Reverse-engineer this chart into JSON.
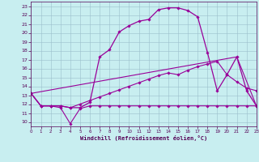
{
  "xlabel": "Windchill (Refroidissement éolien,°C)",
  "xlim": [
    0,
    23
  ],
  "ylim": [
    9.5,
    23.5
  ],
  "xticks": [
    0,
    1,
    2,
    3,
    4,
    5,
    6,
    7,
    8,
    9,
    10,
    11,
    12,
    13,
    14,
    15,
    16,
    17,
    18,
    19,
    20,
    21,
    22,
    23
  ],
  "yticks": [
    10,
    11,
    12,
    13,
    14,
    15,
    16,
    17,
    18,
    19,
    20,
    21,
    22,
    23
  ],
  "bg_color": "#c8eef0",
  "line_color": "#990099",
  "grid_color": "#9bbfcc",
  "line1_x": [
    0,
    1,
    2,
    3,
    4,
    5,
    6,
    7,
    8,
    9,
    10,
    11,
    12,
    13,
    14,
    15,
    16,
    17,
    18,
    19,
    20,
    21,
    22,
    23
  ],
  "line1_y": [
    13.2,
    11.8,
    11.8,
    11.8,
    11.6,
    11.6,
    12.2,
    17.3,
    18.1,
    20.1,
    20.8,
    21.3,
    21.5,
    22.6,
    22.8,
    22.8,
    22.5,
    21.8,
    17.8,
    13.5,
    15.3,
    17.3,
    13.5,
    11.8
  ],
  "line2_x": [
    0,
    1,
    2,
    3,
    4,
    5,
    6,
    7,
    8,
    9,
    10,
    11,
    12,
    13,
    14,
    15,
    16,
    17,
    18,
    19,
    20,
    21,
    22,
    23
  ],
  "line2_y": [
    13.2,
    11.8,
    11.8,
    11.6,
    9.8,
    11.5,
    11.8,
    11.8,
    11.8,
    11.8,
    11.8,
    11.8,
    11.8,
    11.8,
    11.8,
    11.8,
    11.8,
    11.8,
    11.8,
    11.8,
    11.8,
    11.8,
    11.8,
    11.8
  ],
  "line3_x": [
    0,
    21,
    23
  ],
  "line3_y": [
    13.2,
    17.3,
    11.8
  ],
  "line4_x": [
    0,
    1,
    2,
    3,
    4,
    5,
    6,
    7,
    8,
    9,
    10,
    11,
    12,
    13,
    14,
    15,
    16,
    17,
    18,
    19,
    20,
    21,
    22,
    23
  ],
  "line4_y": [
    13.2,
    11.8,
    11.8,
    11.8,
    11.6,
    12.0,
    12.4,
    12.8,
    13.2,
    13.6,
    14.0,
    14.4,
    14.8,
    15.2,
    15.5,
    15.3,
    15.8,
    16.2,
    16.5,
    16.8,
    15.3,
    14.5,
    13.8,
    13.5
  ]
}
